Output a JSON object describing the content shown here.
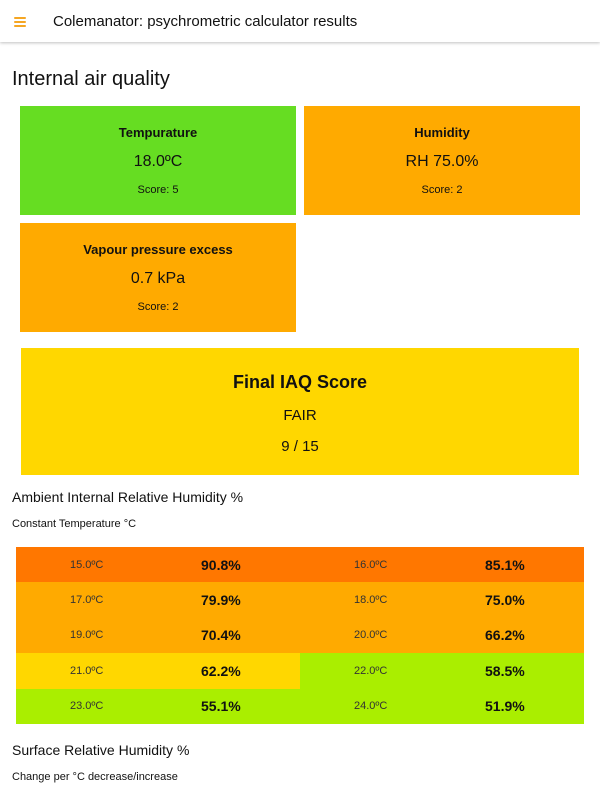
{
  "appbar": {
    "title": "Colemanator: psychrometric calculator results",
    "menu_icon": "hamburger-menu-icon"
  },
  "iaq": {
    "heading": "Internal air quality",
    "cards": [
      {
        "title": "Tempurature",
        "value": "18.0ºC",
        "score": "Score: 5",
        "color": "#66dd22"
      },
      {
        "title": "Humidity",
        "value": "RH 75.0%",
        "score": "Score: 2",
        "color": "#ffaa00"
      },
      {
        "title": "Vapour pressure excess",
        "value": "0.7 kPa",
        "score": "Score: 2",
        "color": "#ffaa00"
      }
    ],
    "final": {
      "title": "Final IAQ Score",
      "rating": "FAIR",
      "ratio": "9 / 15",
      "color": "#ffd700"
    }
  },
  "ambient": {
    "heading": "Ambient Internal Relative Humidity %",
    "subheading": "Constant Temperature °C",
    "rows": [
      [
        {
          "temp": "15.0ºC",
          "rh": "90.8%",
          "color": "#ff7700"
        },
        {
          "temp": "16.0ºC",
          "rh": "85.1%",
          "color": "#ff7700"
        }
      ],
      [
        {
          "temp": "17.0ºC",
          "rh": "79.9%",
          "color": "#ffaa00"
        },
        {
          "temp": "18.0ºC",
          "rh": "75.0%",
          "color": "#ffaa00"
        }
      ],
      [
        {
          "temp": "19.0ºC",
          "rh": "70.4%",
          "color": "#ffaa00"
        },
        {
          "temp": "20.0ºC",
          "rh": "66.2%",
          "color": "#ffaa00"
        }
      ],
      [
        {
          "temp": "21.0ºC",
          "rh": "62.2%",
          "color": "#ffd700"
        },
        {
          "temp": "22.0ºC",
          "rh": "58.5%",
          "color": "#aaee00"
        }
      ],
      [
        {
          "temp": "23.0ºC",
          "rh": "55.1%",
          "color": "#aaee00"
        },
        {
          "temp": "24.0ºC",
          "rh": "51.9%",
          "color": "#aaee00"
        }
      ]
    ]
  },
  "surface": {
    "heading": "Surface Relative Humidity %",
    "subheading": "Change per °C decrease/increase"
  }
}
